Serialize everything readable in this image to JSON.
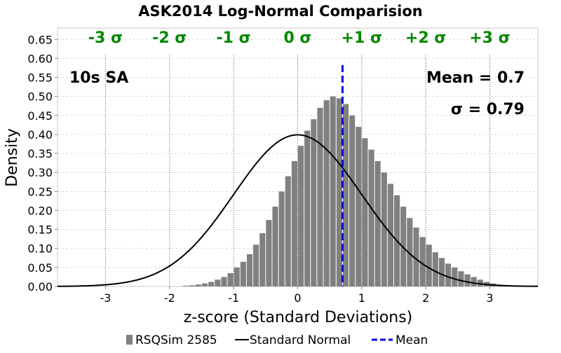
{
  "chart_data": {
    "type": "bar",
    "title": "ASK2014 Log-Normal Comparision",
    "xlabel": "z-score (Standard Deviations)",
    "ylabel": "Density",
    "xlim": [
      -3.75,
      3.75
    ],
    "ylim": [
      0,
      0.68
    ],
    "grid": true,
    "legend_placement": "bottom",
    "x_ticks": [
      -3,
      -2,
      -1,
      0,
      1,
      2,
      3
    ],
    "y_ticks": [
      0.0,
      0.05,
      0.1,
      0.15,
      0.2,
      0.25,
      0.3,
      0.35,
      0.4,
      0.45,
      0.5,
      0.55,
      0.6,
      0.65
    ],
    "y_tick_labels": [
      "0.00",
      "0.05",
      "0.10",
      "0.15",
      "0.20",
      "0.25",
      "0.30",
      "0.35",
      "0.40",
      "0.45",
      "0.50",
      "0.55",
      "0.60",
      "0.65"
    ],
    "sigma_lines": {
      "values": [
        -3,
        -2,
        -1,
        0,
        1,
        2,
        3
      ],
      "labels": [
        "-3 σ",
        "-2 σ",
        "-1 σ",
        "0 σ",
        "+1 σ",
        "+2 σ",
        "+3 σ"
      ],
      "color": "#008800"
    },
    "annotations": {
      "period": "10s SA",
      "mean": "Mean = 0.7",
      "sigma": "σ = 0.79"
    },
    "mean_value": 0.7,
    "histogram": {
      "name": "RSQSim 2585",
      "color": "#808080",
      "bin_width": 0.1,
      "bin_centers": [
        -1.75,
        -1.65,
        -1.55,
        -1.45,
        -1.35,
        -1.25,
        -1.15,
        -1.05,
        -0.95,
        -0.85,
        -0.75,
        -0.65,
        -0.55,
        -0.45,
        -0.35,
        -0.25,
        -0.15,
        -0.05,
        0.05,
        0.15,
        0.25,
        0.35,
        0.45,
        0.55,
        0.65,
        0.75,
        0.85,
        0.95,
        1.05,
        1.15,
        1.25,
        1.35,
        1.45,
        1.55,
        1.65,
        1.75,
        1.85,
        1.95,
        2.05,
        2.15,
        2.25,
        2.35,
        2.45,
        2.55,
        2.65,
        2.75,
        2.85,
        2.95,
        3.05,
        3.15,
        3.25
      ],
      "density": [
        0.002,
        0.003,
        0.005,
        0.008,
        0.012,
        0.018,
        0.025,
        0.035,
        0.05,
        0.065,
        0.085,
        0.11,
        0.14,
        0.175,
        0.21,
        0.25,
        0.29,
        0.33,
        0.37,
        0.41,
        0.44,
        0.47,
        0.49,
        0.5,
        0.495,
        0.48,
        0.45,
        0.42,
        0.39,
        0.36,
        0.33,
        0.3,
        0.27,
        0.24,
        0.21,
        0.18,
        0.155,
        0.13,
        0.11,
        0.09,
        0.075,
        0.06,
        0.05,
        0.04,
        0.032,
        0.025,
        0.018,
        0.012,
        0.008,
        0.005,
        0.003
      ]
    },
    "normal_curve": {
      "name": "Standard Normal",
      "color": "#000000",
      "mu": 0,
      "sigma": 1
    },
    "mean_line": {
      "name": "Mean",
      "color": "#0000dd"
    },
    "grid_color": "#d8d8d8",
    "sigma_color": "#008800",
    "annotation_color": "#000000"
  }
}
